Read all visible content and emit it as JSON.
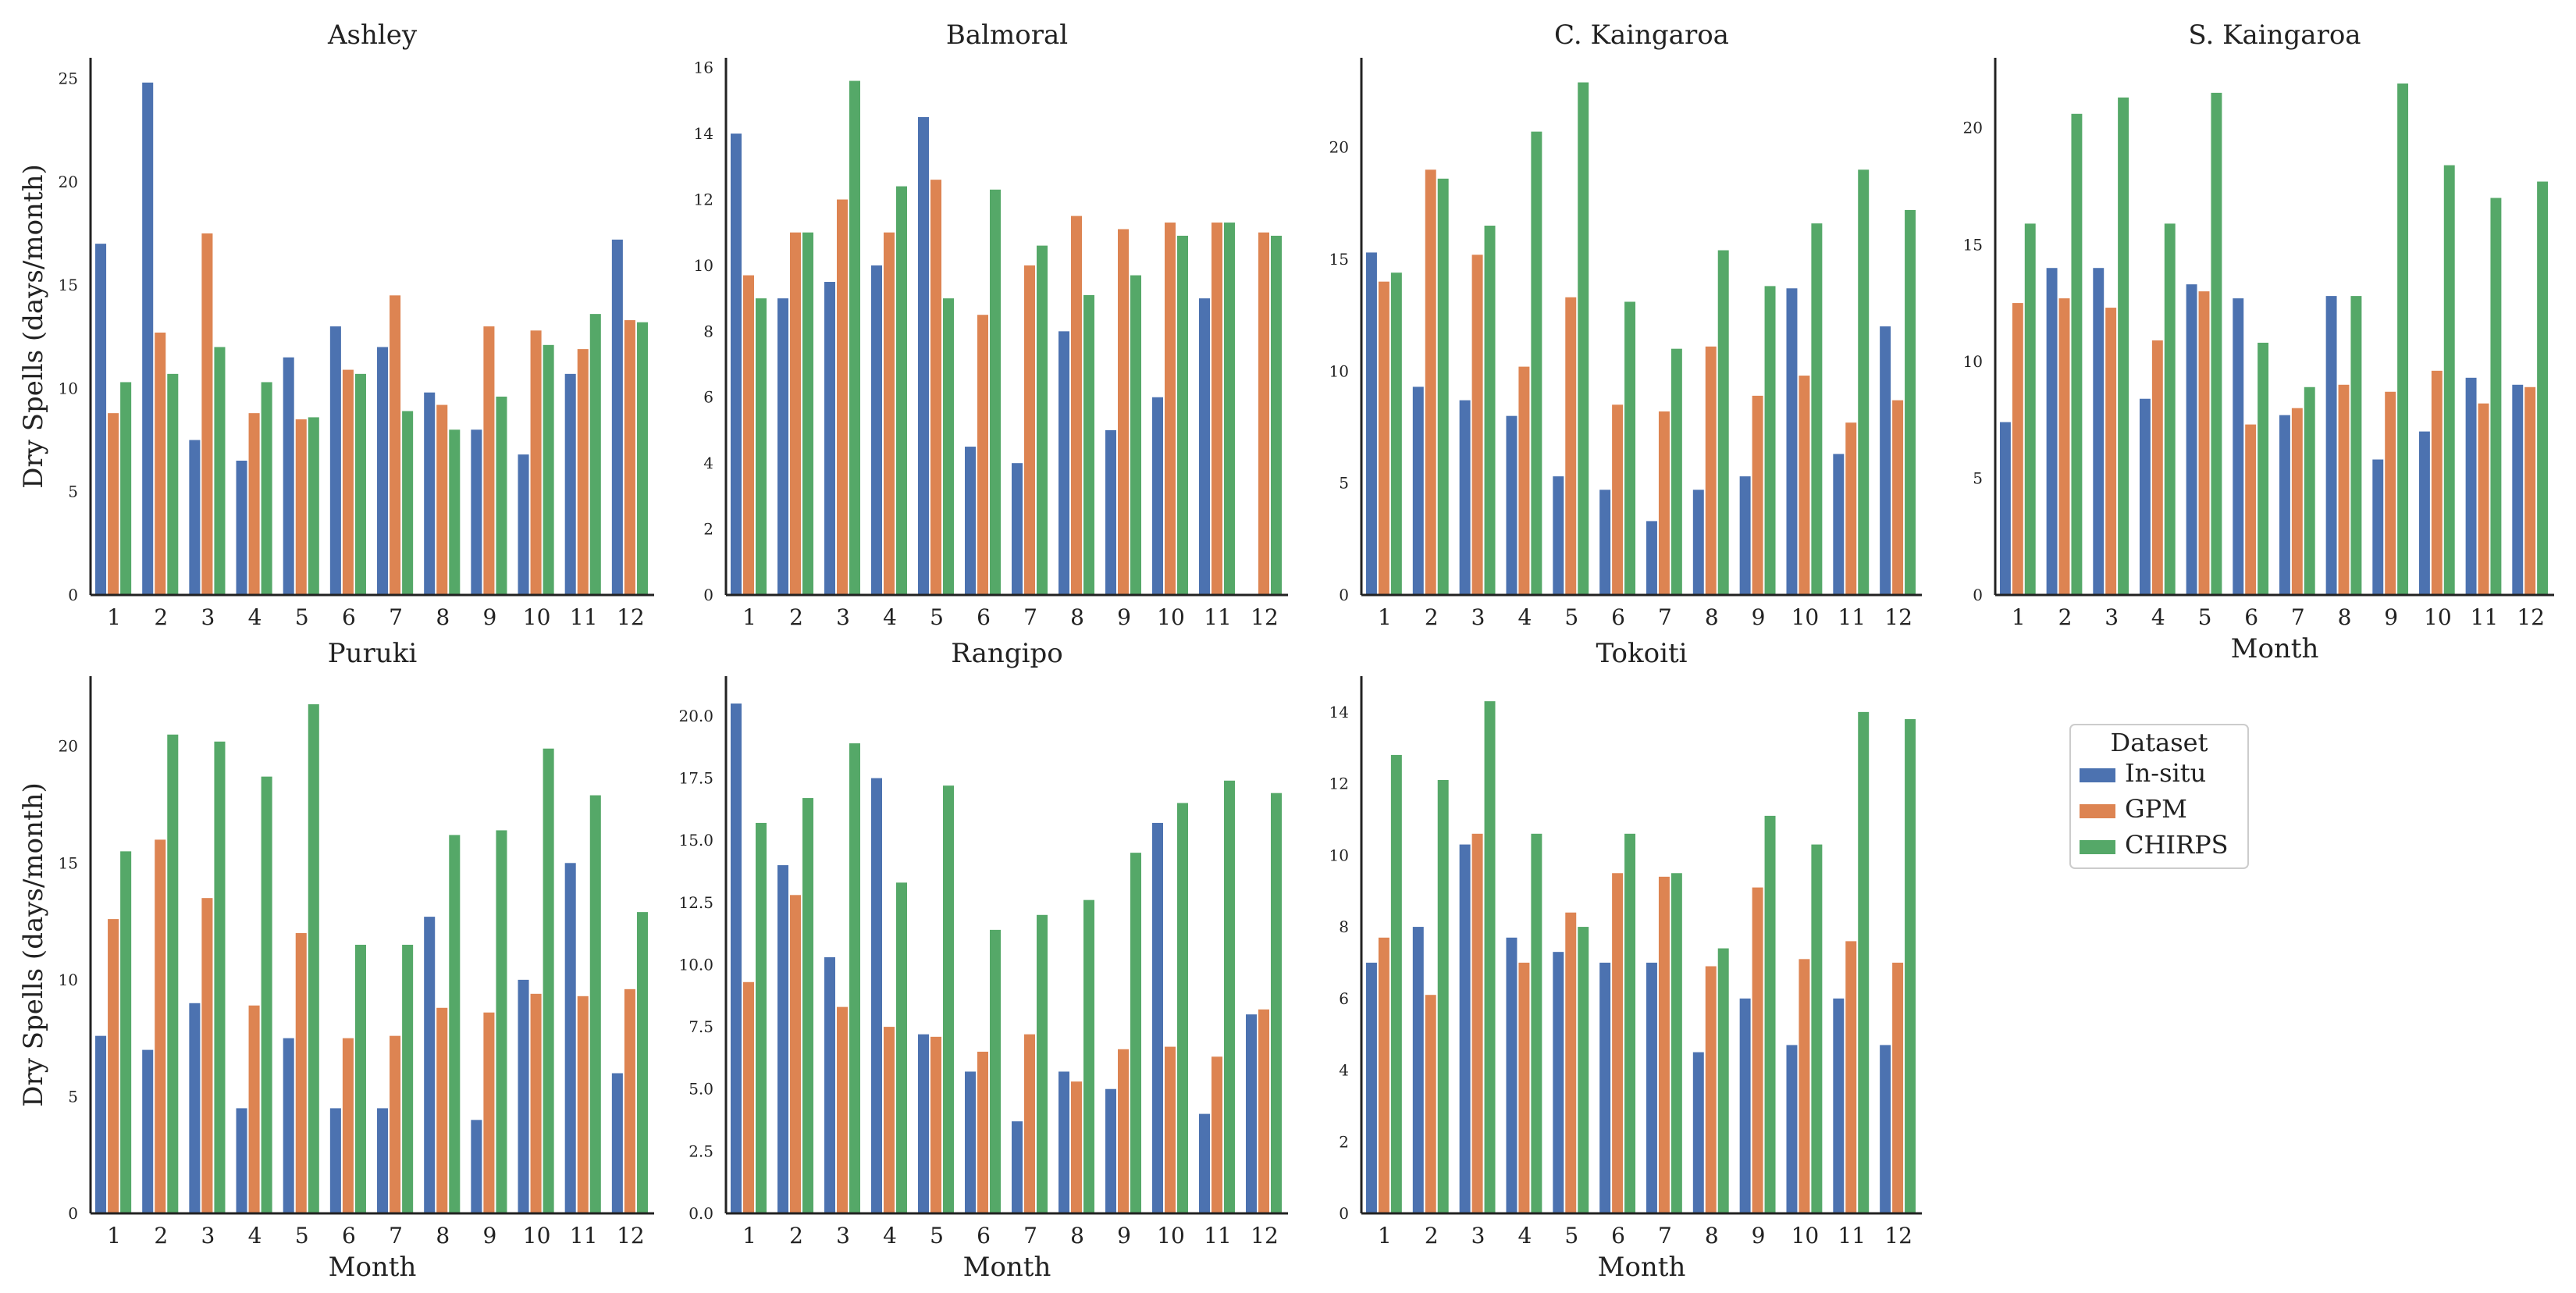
{
  "colors": {
    "In-situ": "#4c72b0",
    "GPM": "#dd8452",
    "CHIRPS": "#55a868"
  },
  "legend": {
    "title": "Dataset",
    "entries": [
      "In-situ",
      "GPM",
      "CHIRPS"
    ]
  },
  "chart_data": [
    {
      "type": "bar",
      "title": "Ashley",
      "xlabel": "",
      "ylabel": "Dry Spells (days/month)",
      "categories": [
        "1",
        "2",
        "3",
        "4",
        "5",
        "6",
        "7",
        "8",
        "9",
        "10",
        "11",
        "12"
      ],
      "ylim": [
        0,
        26
      ],
      "yticks": [
        "0",
        "5",
        "10",
        "15",
        "20",
        "25"
      ],
      "series": [
        {
          "name": "In-situ",
          "values": [
            17.0,
            24.8,
            7.5,
            6.5,
            11.5,
            13.0,
            12.0,
            9.8,
            8.0,
            6.8,
            10.7,
            17.2
          ]
        },
        {
          "name": "GPM",
          "values": [
            8.8,
            12.7,
            17.5,
            8.8,
            8.5,
            10.9,
            14.5,
            9.2,
            13.0,
            12.8,
            11.9,
            13.3
          ]
        },
        {
          "name": "CHIRPS",
          "values": [
            10.3,
            10.7,
            12.0,
            10.3,
            8.6,
            10.7,
            8.9,
            8.0,
            9.6,
            12.1,
            13.6,
            13.2
          ]
        }
      ]
    },
    {
      "type": "bar",
      "title": "Balmoral",
      "xlabel": "",
      "ylabel": "",
      "categories": [
        "1",
        "2",
        "3",
        "4",
        "5",
        "6",
        "7",
        "8",
        "9",
        "10",
        "11",
        "12"
      ],
      "ylim": [
        0,
        16.3
      ],
      "yticks": [
        "0",
        "2",
        "4",
        "6",
        "8",
        "10",
        "12",
        "14",
        "16"
      ],
      "series": [
        {
          "name": "In-situ",
          "values": [
            14.0,
            9.0,
            9.5,
            10.0,
            14.5,
            4.5,
            4.0,
            8.0,
            5.0,
            6.0,
            9.0,
            0
          ]
        },
        {
          "name": "GPM",
          "values": [
            9.7,
            11.0,
            12.0,
            11.0,
            12.6,
            8.5,
            10.0,
            11.5,
            11.1,
            11.3,
            11.3,
            11.0
          ]
        },
        {
          "name": "CHIRPS",
          "values": [
            9.0,
            11.0,
            15.6,
            12.4,
            9.0,
            12.3,
            10.6,
            9.1,
            9.7,
            10.9,
            11.3,
            10.9
          ]
        }
      ]
    },
    {
      "type": "bar",
      "title": "C. Kaingaroa",
      "xlabel": "",
      "ylabel": "",
      "categories": [
        "1",
        "2",
        "3",
        "4",
        "5",
        "6",
        "7",
        "8",
        "9",
        "10",
        "11",
        "12"
      ],
      "ylim": [
        0,
        24
      ],
      "yticks": [
        "0",
        "5",
        "10",
        "15",
        "20"
      ],
      "series": [
        {
          "name": "In-situ",
          "values": [
            15.3,
            9.3,
            8.7,
            8.0,
            5.3,
            4.7,
            3.3,
            4.7,
            5.3,
            13.7,
            6.3,
            12.0
          ]
        },
        {
          "name": "GPM",
          "values": [
            14.0,
            19.0,
            15.2,
            10.2,
            13.3,
            8.5,
            8.2,
            11.1,
            8.9,
            9.8,
            7.7,
            8.7
          ]
        },
        {
          "name": "CHIRPS",
          "values": [
            14.4,
            18.6,
            16.5,
            20.7,
            22.9,
            13.1,
            11.0,
            15.4,
            13.8,
            16.6,
            19.0,
            17.2
          ]
        }
      ]
    },
    {
      "type": "bar",
      "title": "S. Kaingaroa",
      "xlabel": "Month",
      "ylabel": "",
      "categories": [
        "1",
        "2",
        "3",
        "4",
        "5",
        "6",
        "7",
        "8",
        "9",
        "10",
        "11",
        "12"
      ],
      "ylim": [
        0,
        23
      ],
      "yticks": [
        "0",
        "5",
        "10",
        "15",
        "20"
      ],
      "series": [
        {
          "name": "In-situ",
          "values": [
            7.4,
            14.0,
            14.0,
            8.4,
            13.3,
            12.7,
            7.7,
            12.8,
            5.8,
            7.0,
            9.3,
            9.0
          ]
        },
        {
          "name": "GPM",
          "values": [
            12.5,
            12.7,
            12.3,
            10.9,
            13.0,
            7.3,
            8.0,
            9.0,
            8.7,
            9.6,
            8.2,
            8.9
          ]
        },
        {
          "name": "CHIRPS",
          "values": [
            15.9,
            20.6,
            21.3,
            15.9,
            21.5,
            10.8,
            8.9,
            12.8,
            21.9,
            18.4,
            17.0,
            17.7
          ]
        }
      ]
    },
    {
      "type": "bar",
      "title": "Puruki",
      "xlabel": "Month",
      "ylabel": "Dry Spells (days/month)",
      "categories": [
        "1",
        "2",
        "3",
        "4",
        "5",
        "6",
        "7",
        "8",
        "9",
        "10",
        "11",
        "12"
      ],
      "ylim": [
        0,
        23
      ],
      "yticks": [
        "0",
        "5",
        "10",
        "15",
        "20"
      ],
      "series": [
        {
          "name": "In-situ",
          "values": [
            7.6,
            7.0,
            9.0,
            4.5,
            7.5,
            4.5,
            4.5,
            12.7,
            4.0,
            10.0,
            15.0,
            6.0
          ]
        },
        {
          "name": "GPM",
          "values": [
            12.6,
            16.0,
            13.5,
            8.9,
            12.0,
            7.5,
            7.6,
            8.8,
            8.6,
            9.4,
            9.3,
            9.6
          ]
        },
        {
          "name": "CHIRPS",
          "values": [
            15.5,
            20.5,
            20.2,
            18.7,
            21.8,
            11.5,
            11.5,
            16.2,
            16.4,
            19.9,
            17.9,
            12.9
          ]
        }
      ]
    },
    {
      "type": "bar",
      "title": "Rangipo",
      "xlabel": "Month",
      "ylabel": "",
      "categories": [
        "1",
        "2",
        "3",
        "4",
        "5",
        "6",
        "7",
        "8",
        "9",
        "10",
        "11",
        "12"
      ],
      "ylim": [
        0,
        21.6
      ],
      "yticks": [
        "0.0",
        "2.5",
        "5.0",
        "7.5",
        "10.0",
        "12.5",
        "15.0",
        "17.5",
        "20.0"
      ],
      "series": [
        {
          "name": "In-situ",
          "values": [
            20.5,
            14.0,
            10.3,
            17.5,
            7.2,
            5.7,
            3.7,
            5.7,
            5.0,
            15.7,
            4.0,
            8.0
          ]
        },
        {
          "name": "GPM",
          "values": [
            9.3,
            12.8,
            8.3,
            7.5,
            7.1,
            6.5,
            7.2,
            5.3,
            6.6,
            6.7,
            6.3,
            8.2
          ]
        },
        {
          "name": "CHIRPS",
          "values": [
            15.7,
            16.7,
            18.9,
            13.3,
            17.2,
            11.4,
            12.0,
            12.6,
            14.5,
            16.5,
            17.4,
            16.9
          ]
        }
      ]
    },
    {
      "type": "bar",
      "title": "Tokoiti",
      "xlabel": "Month",
      "ylabel": "",
      "categories": [
        "1",
        "2",
        "3",
        "4",
        "5",
        "6",
        "7",
        "8",
        "9",
        "10",
        "11",
        "12"
      ],
      "ylim": [
        0,
        15
      ],
      "yticks": [
        "0",
        "2",
        "4",
        "6",
        "8",
        "10",
        "12",
        "14"
      ],
      "series": [
        {
          "name": "In-situ",
          "values": [
            7.0,
            8.0,
            10.3,
            7.7,
            7.3,
            7.0,
            7.0,
            4.5,
            6.0,
            4.7,
            6.0,
            4.7
          ]
        },
        {
          "name": "GPM",
          "values": [
            7.7,
            6.1,
            10.6,
            7.0,
            8.4,
            9.5,
            9.4,
            6.9,
            9.1,
            7.1,
            7.6,
            7.0
          ]
        },
        {
          "name": "CHIRPS",
          "values": [
            12.8,
            12.1,
            14.3,
            10.6,
            8.0,
            10.6,
            9.5,
            7.4,
            11.1,
            10.3,
            14.0,
            13.8
          ]
        }
      ]
    }
  ]
}
